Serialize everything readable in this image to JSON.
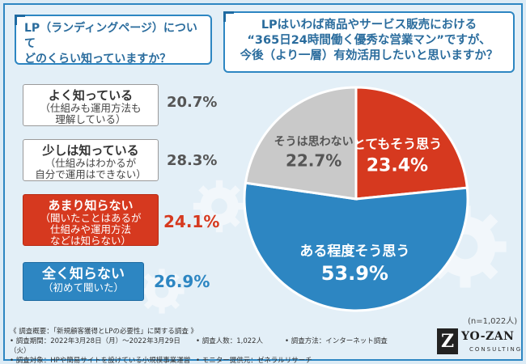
{
  "question1": {
    "line1": "LP（ランディングページ）について",
    "line2": "どのくらい知っていますか？"
  },
  "question2": {
    "line1": "LPはいわば商品やサービス販売における",
    "line2": "“365日24時間働く優秀な営業マン”ですが、",
    "line3": "今後（より一層）有効活用したいと思いますか？"
  },
  "options": [
    {
      "main": "よく知っている",
      "sub1": "（仕組みも運用方法も",
      "sub2": "理解している）",
      "pct": "20.7%"
    },
    {
      "main": "少しは知っている",
      "sub1": "（仕組みはわかるが",
      "sub2": "自分で運用はできない）",
      "pct": "28.3%"
    },
    {
      "main": "あまり知らない",
      "sub1": "（聞いたことはあるが",
      "sub2": "仕組みや運用方法",
      "sub3": "などは知らない）",
      "pct": "24.1%"
    },
    {
      "main": "全く知らない",
      "sub1": "（初めて聞いた）",
      "pct": "26.9%"
    }
  ],
  "chart_data": [
    {
      "type": "bar",
      "categories": [
        "よく知っている",
        "少しは知っている",
        "あまり知らない",
        "全く知らない"
      ],
      "values": [
        20.7,
        28.3,
        24.1,
        26.9
      ],
      "unit": "%"
    },
    {
      "type": "pie",
      "slices": [
        {
          "label": "とてもそう思う",
          "value": 23.4,
          "color": "#d6391f"
        },
        {
          "label": "ある程度そう思う",
          "value": 53.9,
          "color": "#2d86c2"
        },
        {
          "label": "そうは思わない",
          "value": 22.7,
          "color": "#c9c9c9"
        }
      ],
      "unit": "%"
    }
  ],
  "pie_labels": [
    {
      "label": "とてもそう思う",
      "pct": "23.4%"
    },
    {
      "label": "ある程度そう思う",
      "pct": "53.9%"
    },
    {
      "label": "そうは思わない",
      "pct": "22.7%"
    }
  ],
  "n_label": "(n=1,022人)",
  "footer": {
    "title": "《 調査概要：「新規顧客獲得とLPの必要性」に関する調査 》",
    "period": "• 調査期間：2022年3月28日（月）～2022年3月29日（火）",
    "count": "• 調査人数：1,022人",
    "method": "• 調査方法：インターネット調査",
    "target": "• 調査対象：HPや簡易サイトを設けている小規模事業運営者",
    "provider": "• モニター提供元：ゼネラルリサーチ"
  },
  "logo": {
    "mark": "Z",
    "name": "YO-ZAN",
    "sub": "CONSULTING"
  },
  "colors": {
    "accent": "#2d86c2",
    "red": "#d6391f",
    "gray": "#c9c9c9"
  }
}
